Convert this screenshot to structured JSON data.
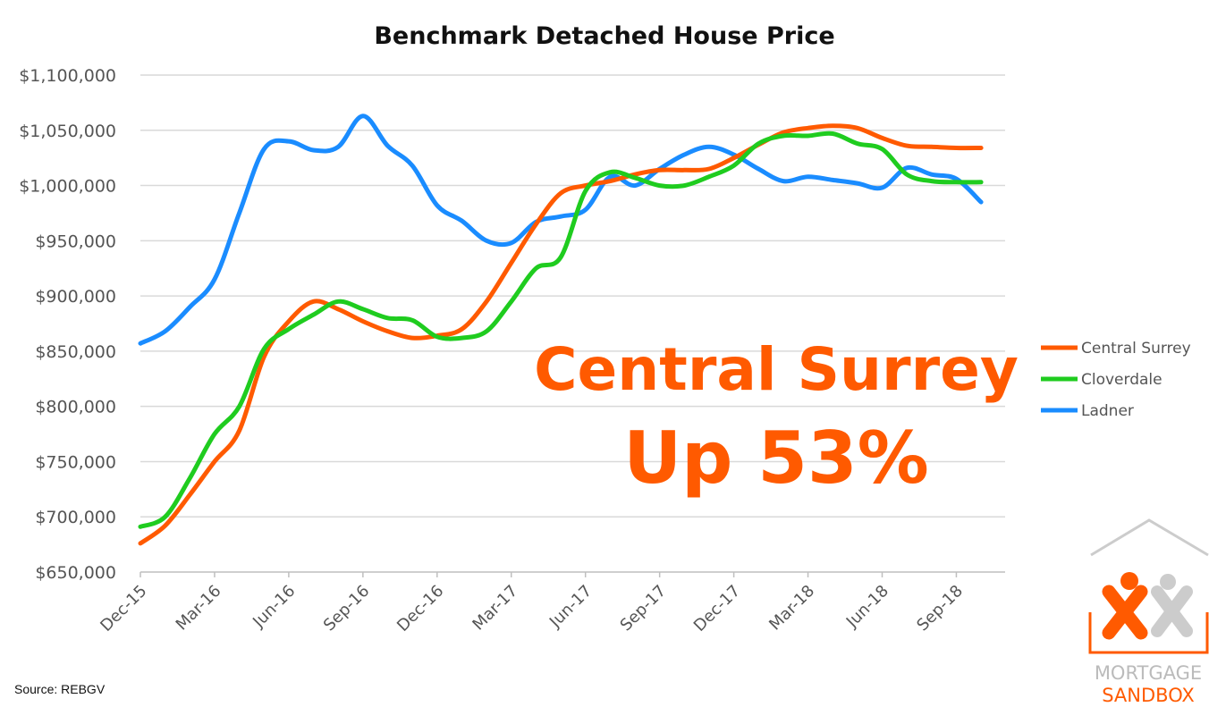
{
  "chart_data": {
    "type": "line",
    "title": "Benchmark Detached House Price",
    "xlabel": "",
    "ylabel": "",
    "ylim": [
      650000,
      1100000
    ],
    "y_ticks": [
      650000,
      700000,
      750000,
      800000,
      850000,
      900000,
      950000,
      1000000,
      1050000,
      1100000
    ],
    "y_tick_labels": [
      "$650,000",
      "$700,000",
      "$750,000",
      "$800,000",
      "$850,000",
      "$900,000",
      "$950,000",
      "$1,000,000",
      "$1,050,000",
      "$1,100,000"
    ],
    "x": [
      "Dec-15",
      "Jan-16",
      "Feb-16",
      "Mar-16",
      "Apr-16",
      "May-16",
      "Jun-16",
      "Jul-16",
      "Aug-16",
      "Sep-16",
      "Oct-16",
      "Nov-16",
      "Dec-16",
      "Jan-17",
      "Feb-17",
      "Mar-17",
      "Apr-17",
      "May-17",
      "Jun-17",
      "Jul-17",
      "Aug-17",
      "Sep-17",
      "Oct-17",
      "Nov-17",
      "Dec-17",
      "Jan-18",
      "Feb-18",
      "Mar-18",
      "Apr-18",
      "May-18",
      "Jun-18",
      "Jul-18",
      "Aug-18",
      "Sep-18",
      "Oct-18"
    ],
    "x_tick_labels": [
      "Dec-15",
      "Mar-16",
      "Jun-16",
      "Sep-16",
      "Dec-16",
      "Mar-17",
      "Jun-17",
      "Sep-17",
      "Dec-17",
      "Mar-18",
      "Jun-18",
      "Sep-18"
    ],
    "grid": true,
    "legend_position": "right",
    "series": [
      {
        "name": "Central Surrey",
        "color": "#ff5a00",
        "values": [
          676000,
          692000,
          720000,
          750000,
          778000,
          845000,
          877000,
          895000,
          888000,
          877000,
          868000,
          862000,
          864000,
          870000,
          895000,
          930000,
          965000,
          993000,
          1000000,
          1004000,
          1010000,
          1014000,
          1014000,
          1015000,
          1025000,
          1037000,
          1048000,
          1052000,
          1054000,
          1052000,
          1043000,
          1036000,
          1035000,
          1034000,
          1034000
        ]
      },
      {
        "name": "Cloverdale",
        "color": "#1fcc1f",
        "values": [
          691000,
          700000,
          735000,
          775000,
          800000,
          852000,
          870000,
          883000,
          895000,
          888000,
          880000,
          878000,
          863000,
          862000,
          868000,
          895000,
          925000,
          935000,
          995000,
          1012000,
          1007000,
          1000000,
          1000000,
          1008000,
          1018000,
          1038000,
          1045000,
          1045000,
          1047000,
          1038000,
          1033000,
          1010000,
          1004000,
          1003000,
          1003000
        ]
      },
      {
        "name": "Ladner",
        "color": "#1a8cff",
        "values": [
          857000,
          868000,
          890000,
          915000,
          975000,
          1033000,
          1040000,
          1032000,
          1035000,
          1063000,
          1036000,
          1018000,
          982000,
          968000,
          950000,
          948000,
          967000,
          972000,
          978000,
          1008000,
          1000000,
          1015000,
          1028000,
          1035000,
          1028000,
          1015000,
          1004000,
          1008000,
          1005000,
          1002000,
          998000,
          1016000,
          1010000,
          1006000,
          985000
        ]
      }
    ]
  },
  "annotation": {
    "line1": "Central Surrey",
    "line2": "Up 53%",
    "color": "#ff5a00"
  },
  "source": "Source: REBGV",
  "logo": {
    "line1": "MORTGAGE",
    "line2": "SANDBOX",
    "icon": "house-people-logo-icon",
    "accent": "#ff5a00",
    "gray": "#cccccc"
  }
}
